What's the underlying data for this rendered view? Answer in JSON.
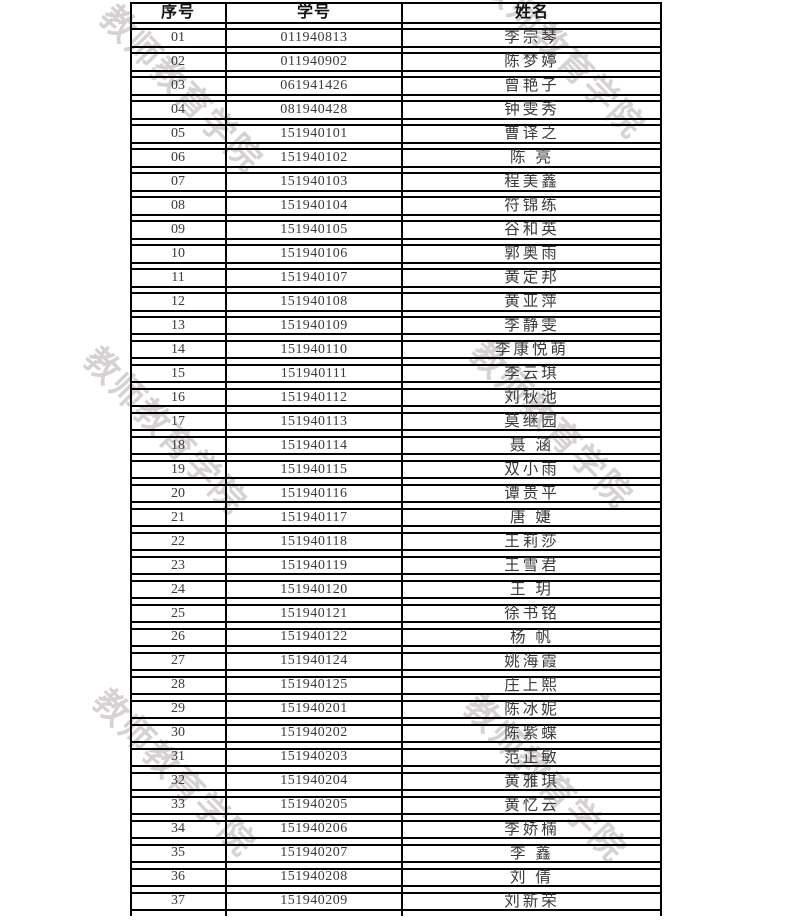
{
  "watermark": {
    "text": "教师教育学院",
    "color": "#cac2c2"
  },
  "colors": {
    "table_border": "#000000",
    "cell_text": "#3a3a3a",
    "header_text": "#141414",
    "page_background": "#ffffff"
  },
  "table": {
    "headers": [
      "序号",
      "学号",
      "姓名"
    ],
    "rows": [
      [
        "01",
        "011940813",
        "李宗琴"
      ],
      [
        "02",
        "011940902",
        "陈梦婷"
      ],
      [
        "03",
        "061941426",
        "曾艳子"
      ],
      [
        "04",
        "081940428",
        "钟雯秀"
      ],
      [
        "05",
        "151940101",
        "曹译之"
      ],
      [
        "06",
        "151940102",
        "陈 亮"
      ],
      [
        "07",
        "151940103",
        "程美鑫"
      ],
      [
        "08",
        "151940104",
        "符锦练"
      ],
      [
        "09",
        "151940105",
        "谷和英"
      ],
      [
        "10",
        "151940106",
        "郭奥雨"
      ],
      [
        "11",
        "151940107",
        "黄定邦"
      ],
      [
        "12",
        "151940108",
        "黄亚萍"
      ],
      [
        "13",
        "151940109",
        "李静雯"
      ],
      [
        "14",
        "151940110",
        "李康悦萌"
      ],
      [
        "15",
        "151940111",
        "李云琪"
      ],
      [
        "16",
        "151940112",
        "刘秋池"
      ],
      [
        "17",
        "151940113",
        "莫继园"
      ],
      [
        "18",
        "151940114",
        "聂 涵"
      ],
      [
        "19",
        "151940115",
        "双小雨"
      ],
      [
        "20",
        "151940116",
        "谭贵平"
      ],
      [
        "21",
        "151940117",
        "唐 婕"
      ],
      [
        "22",
        "151940118",
        "王莉莎"
      ],
      [
        "23",
        "151940119",
        "王雪君"
      ],
      [
        "24",
        "151940120",
        "王 玥"
      ],
      [
        "25",
        "151940121",
        "徐书铭"
      ],
      [
        "26",
        "151940122",
        "杨 帆"
      ],
      [
        "27",
        "151940124",
        "姚海霞"
      ],
      [
        "28",
        "151940125",
        "庄上熙"
      ],
      [
        "29",
        "151940201",
        "陈冰妮"
      ],
      [
        "30",
        "151940202",
        "陈紫蝶"
      ],
      [
        "31",
        "151940203",
        "范正敏"
      ],
      [
        "32",
        "151940204",
        "黄雅琪"
      ],
      [
        "33",
        "151940205",
        "黄忆云"
      ],
      [
        "34",
        "151940206",
        "李娇楠"
      ],
      [
        "35",
        "151940207",
        "李 鑫"
      ],
      [
        "36",
        "151940208",
        "刘 倩"
      ],
      [
        "37",
        "151940209",
        "刘新荣"
      ]
    ]
  }
}
